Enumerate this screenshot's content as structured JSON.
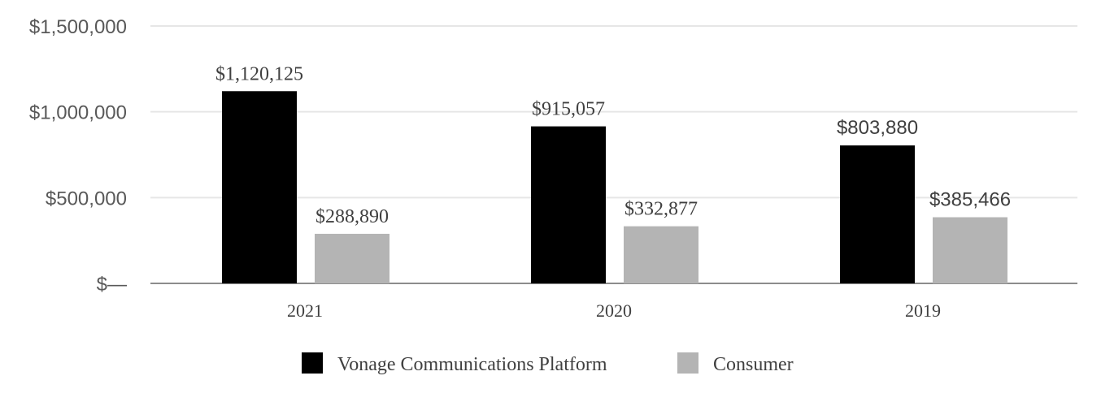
{
  "chart_data": {
    "type": "bar",
    "categories": [
      "2021",
      "2020",
      "2019"
    ],
    "series": [
      {
        "name": "Vonage Communications Platform",
        "color": "#000000",
        "values": [
          1120125,
          915057,
          803880
        ],
        "labels": [
          "$1,120,125",
          "$915,057",
          "$803,880"
        ]
      },
      {
        "name": "Consumer",
        "color": "#b4b4b4",
        "values": [
          288890,
          332877,
          385466
        ],
        "labels": [
          "$288,890",
          "$332,877",
          "$385,466"
        ]
      }
    ],
    "yticks": [
      {
        "value": 0,
        "label": "$—"
      },
      {
        "value": 500000,
        "label": "$500,000"
      },
      {
        "value": 1000000,
        "label": "$1,000,000"
      },
      {
        "value": 1500000,
        "label": "$1,500,000"
      }
    ],
    "ylim": [
      0,
      1500000
    ],
    "grid": true,
    "legend_position": "bottom"
  }
}
